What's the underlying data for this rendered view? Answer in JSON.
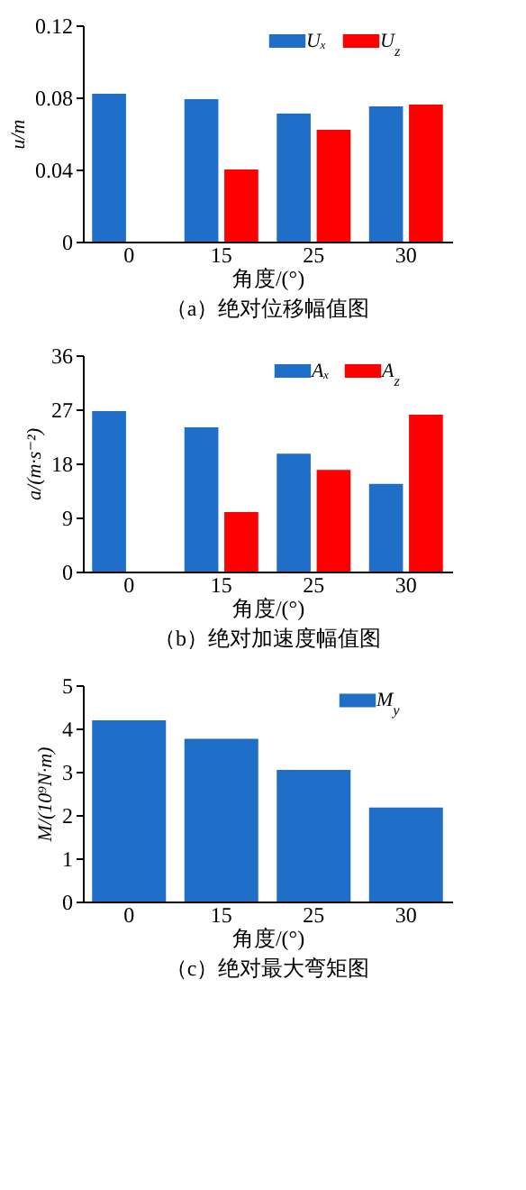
{
  "chart_data": [
    {
      "type": "bar",
      "xlabel": "角度/(°)",
      "ylabel": "u/m",
      "annotations": [
        "（a）绝对位移幅值图"
      ],
      "categories": [
        "0",
        "15",
        "25",
        "30"
      ],
      "series": [
        {
          "name": "Uₓ",
          "color": "#1f6fc8",
          "values": [
            0.082,
            0.079,
            0.071,
            0.075
          ]
        },
        {
          "name": "U$_{z}$",
          "color": "#ff0000",
          "values": [
            null,
            0.04,
            0.062,
            0.076
          ]
        }
      ],
      "ylim": [
        0,
        0.12
      ],
      "yticks": [
        {
          "value": 0,
          "label": "0"
        },
        0.04,
        0.08,
        0.12
      ],
      "grid": false,
      "legend": "top right"
    },
    {
      "type": "bar",
      "xlabel": "角度/(°)",
      "ylabel": "a/(m·s⁻²)",
      "annotations": [
        "（b）绝对加速度幅值图"
      ],
      "categories": [
        "0",
        "15",
        "25",
        "30"
      ],
      "series": [
        {
          "name": "Aₓ",
          "color": "#1f6fc8",
          "values": [
            26.7,
            24.0,
            19.6,
            14.6
          ]
        },
        {
          "name": "A$_{z}$",
          "color": "#ff0000",
          "values": [
            null,
            9.9,
            16.9,
            26.1
          ]
        }
      ],
      "ylim": [
        0,
        36
      ],
      "yticks": [
        0,
        9,
        18,
        27,
        36
      ],
      "grid": false,
      "legend": "top right"
    },
    {
      "type": "bar",
      "xlabel": "角度/(°)",
      "ylabel": "M/(10⁹N·m)",
      "annotations": [
        "（c）绝对最大弯矩图"
      ],
      "categories": [
        "0",
        "15",
        "25",
        "30"
      ],
      "series": [
        {
          "name": "M$_{y}$",
          "color": "#1f6fc8",
          "values": [
            4.19,
            3.76,
            3.04,
            2.17
          ]
        }
      ],
      "ylim": [
        0,
        5
      ],
      "yticks": [
        0,
        1,
        2,
        3,
        4,
        5
      ],
      "grid": false,
      "legend": "top right"
    }
  ]
}
